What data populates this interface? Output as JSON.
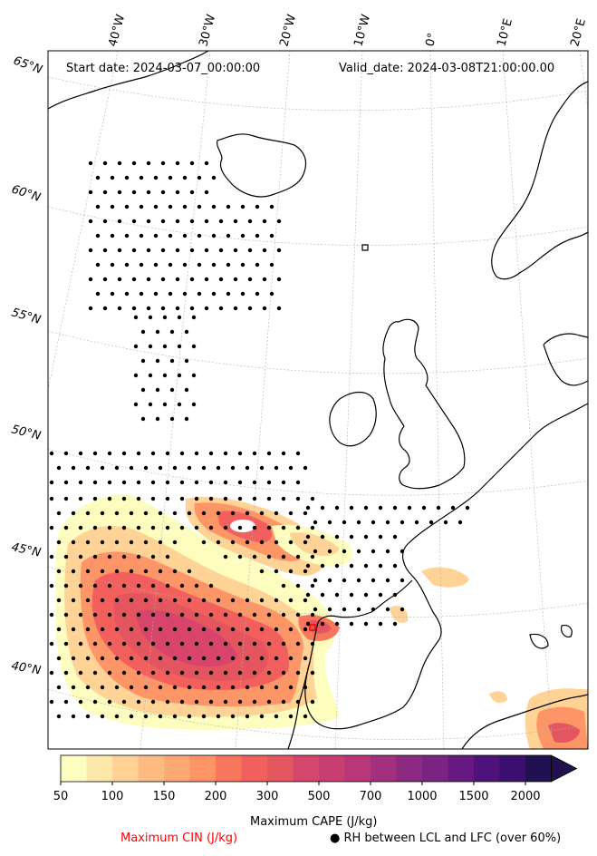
{
  "header": {
    "start_date": "Start date: 2024-03-07_00:00:00",
    "valid_date": "Valid_date: 2024-03-08T21:00:00.00"
  },
  "lon_labels": [
    "40°W",
    "30°W",
    "20°W",
    "10°W",
    "0°",
    "10°E",
    "20°E"
  ],
  "lat_labels": [
    "65°N",
    "60°N",
    "55°N",
    "50°N",
    "45°N",
    "40°N"
  ],
  "colorbar": {
    "ticks": [
      "50",
      "100",
      "150",
      "200",
      "300",
      "500",
      "700",
      "1000",
      "1500",
      "2000"
    ],
    "colors": [
      "#fcfdbf",
      "#fde7a9",
      "#fed395",
      "#febb81",
      "#fea973",
      "#fd9567",
      "#f8765c",
      "#f1605d",
      "#e35660",
      "#d6456c",
      "#c83e73",
      "#b73779",
      "#a3307e",
      "#8c2981",
      "#7a2382",
      "#641a80",
      "#4f127b",
      "#3b0f70",
      "#221150"
    ],
    "title": "Maximum CAPE (J/kg)"
  },
  "legend": {
    "cin": "Maximum CIN (J/kg)",
    "rh": "● RH between LCL and LFC (over 60%)"
  }
}
